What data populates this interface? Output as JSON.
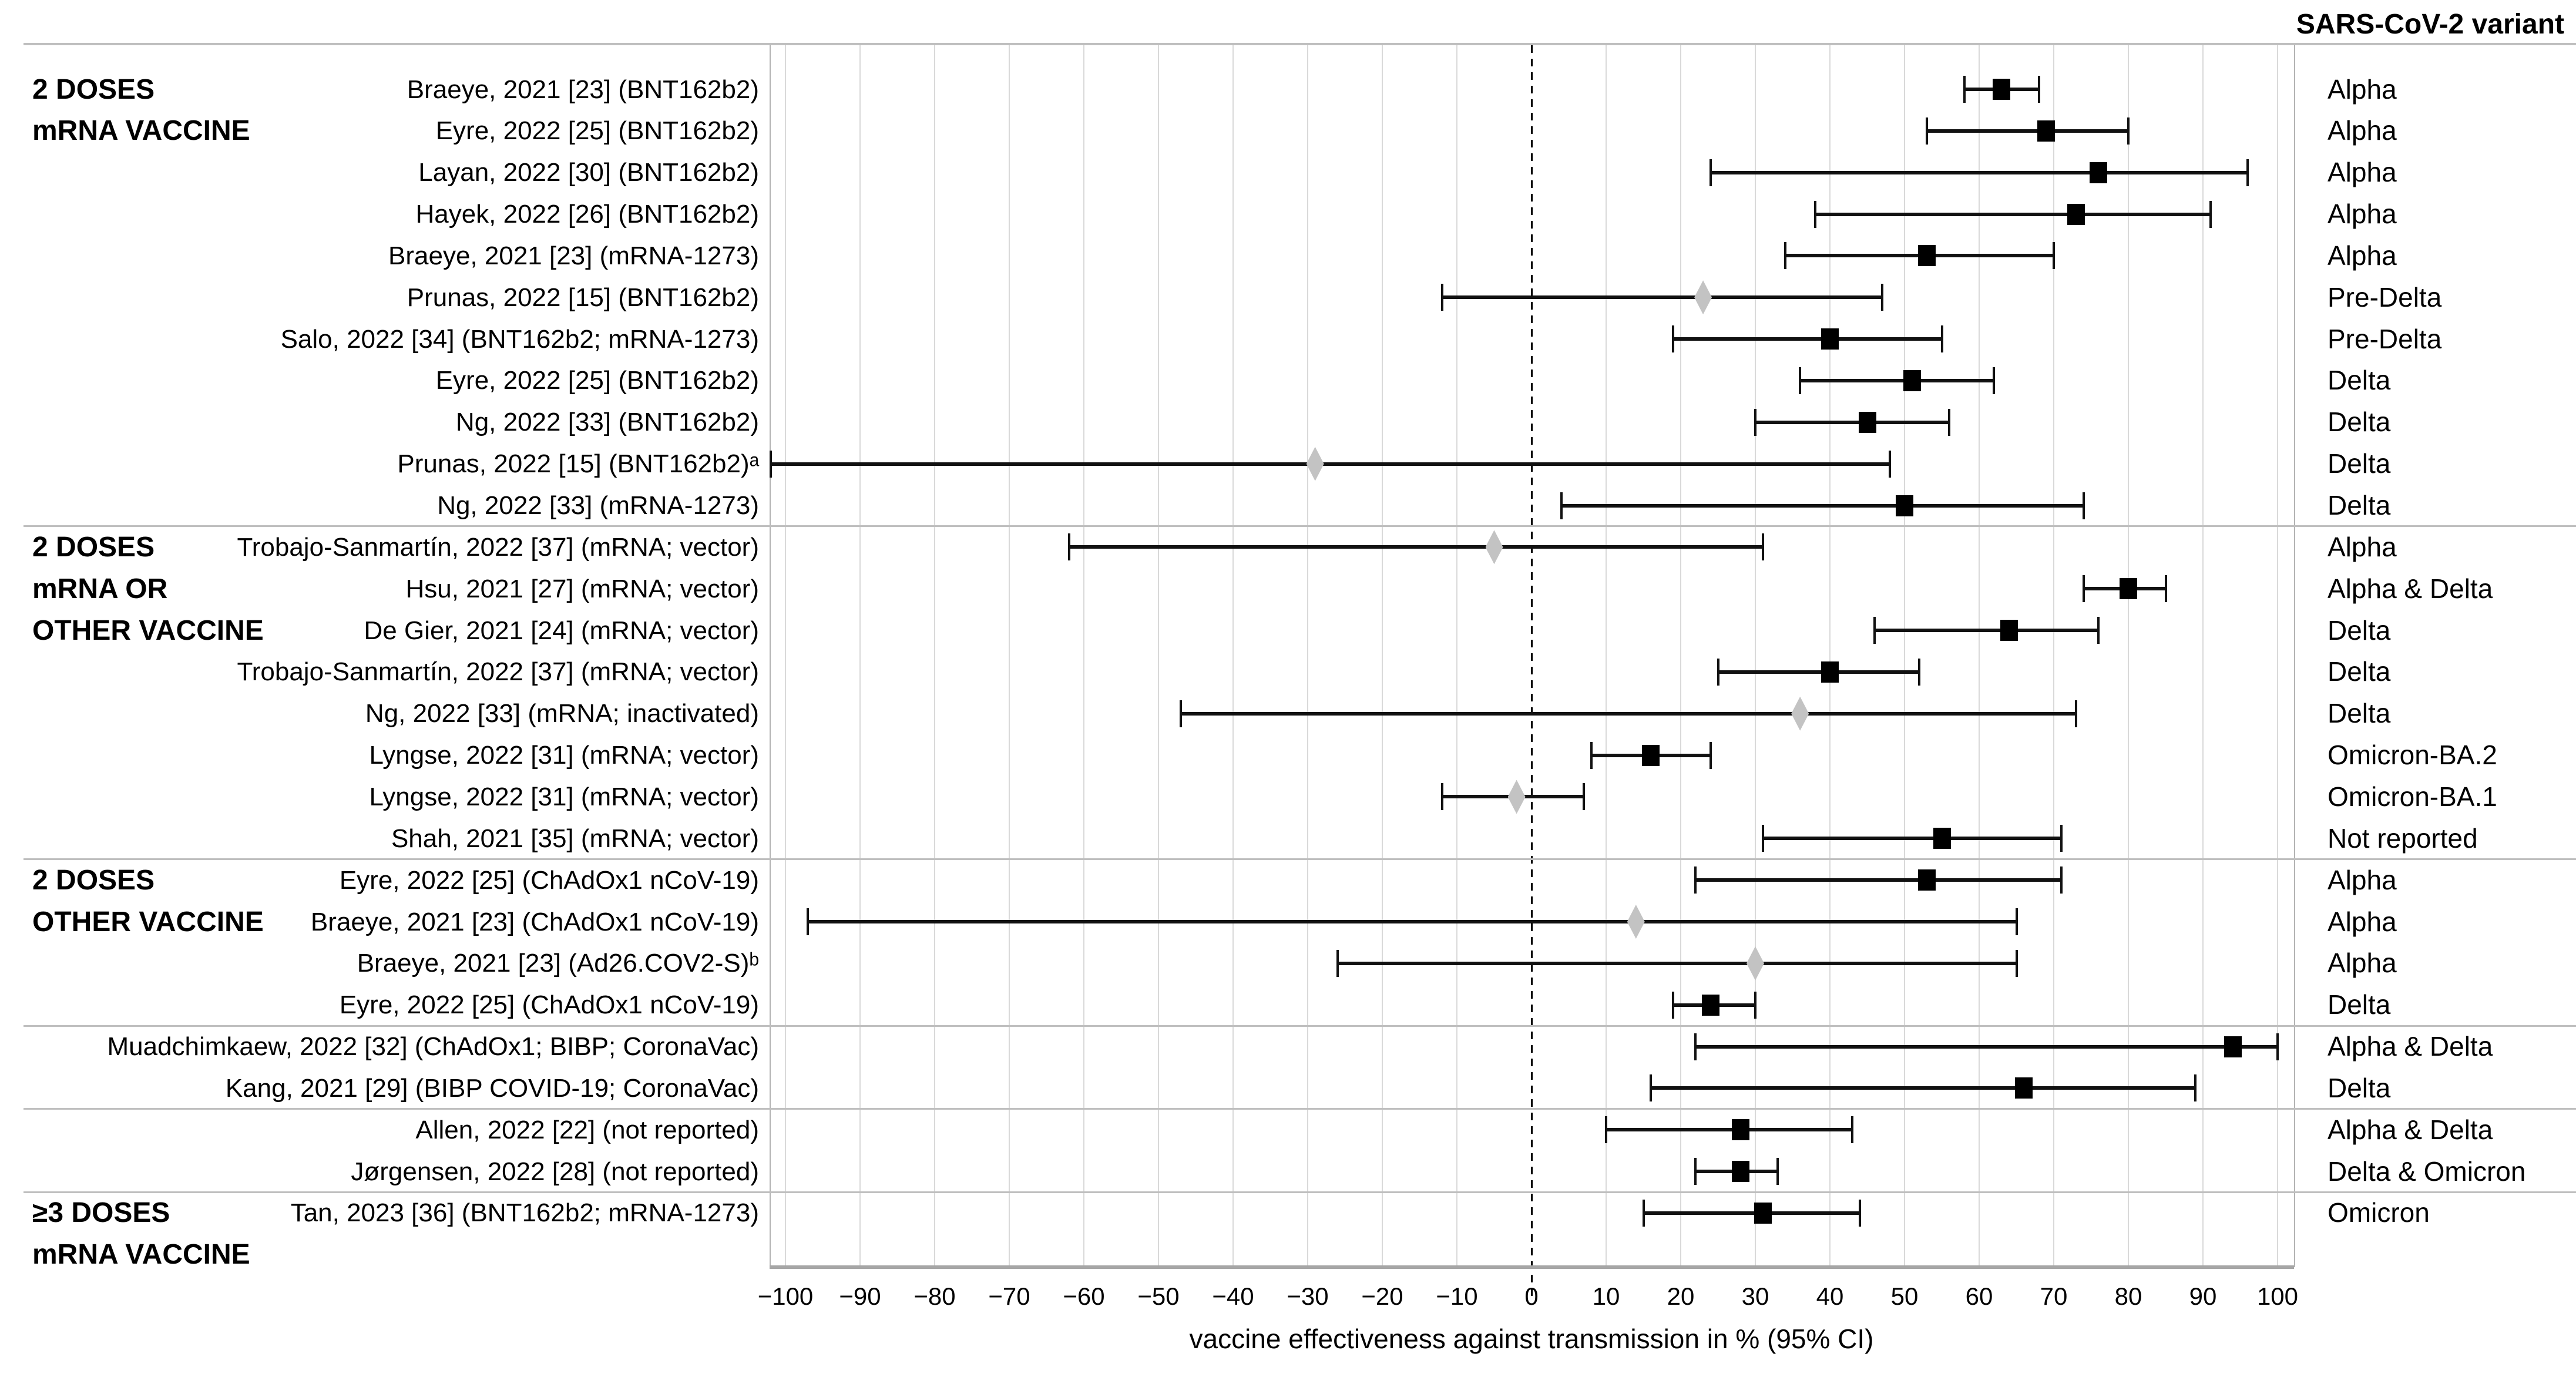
{
  "chart_data": {
    "type": "scatter",
    "subtype": "forest-plot",
    "title": "",
    "xlabel": "vaccine effectiveness against transmission in % (95% CI)",
    "right_column_header": "SARS-CoV-2 variant",
    "xlim": [
      -100,
      100
    ],
    "x_tick_step": 10,
    "x_tick_values": [
      -100,
      -90,
      -80,
      -70,
      -60,
      -50,
      -40,
      -30,
      -20,
      -10,
      0,
      10,
      20,
      30,
      40,
      50,
      60,
      70,
      80,
      90,
      100
    ],
    "x_tick_labels": [
      "−100",
      "−90",
      "−80",
      "−70",
      "−60",
      "−50",
      "−40",
      "−30",
      "−20",
      "−10",
      "0",
      "10",
      "20",
      "30",
      "40",
      "50",
      "60",
      "70",
      "80",
      "90",
      "100"
    ],
    "grid": true,
    "zero_reference_line": "dashed",
    "marker_colors": {
      "black-square": "#000000",
      "grey-diamond": "#c3c3c3"
    },
    "sections": [
      {
        "header": [
          "2 DOSES",
          "mRNA VACCINE"
        ],
        "start": 0,
        "end": 10
      },
      {
        "header": [
          "2 DOSES",
          "mRNA OR",
          "OTHER VACCINE"
        ],
        "start": 11,
        "end": 18
      },
      {
        "header": [
          "2 DOSES",
          "OTHER VACCINE"
        ],
        "start": 19,
        "end": 22
      },
      {
        "header": [],
        "start": 23,
        "end": 24
      },
      {
        "header": [],
        "start": 25,
        "end": 26
      },
      {
        "header": [
          "≥3 DOSES",
          "mRNA VACCINE"
        ],
        "start": 27,
        "end": 27
      }
    ],
    "rows": [
      {
        "label": "Braeye, 2021 [23] (BNT162b2)",
        "variant": "Alpha",
        "est": 63,
        "lo": 58,
        "hi": 68,
        "marker": "black-square"
      },
      {
        "label": "Eyre, 2022 [25] (BNT162b2)",
        "variant": "Alpha",
        "est": 69,
        "lo": 53,
        "hi": 80,
        "marker": "black-square"
      },
      {
        "label": "Layan, 2022 [30] (BNT162b2)",
        "variant": "Alpha",
        "est": 76,
        "lo": 24,
        "hi": 96,
        "marker": "black-square"
      },
      {
        "label": "Hayek, 2022 [26] (BNT162b2)",
        "variant": "Alpha",
        "est": 73,
        "lo": 38,
        "hi": 91,
        "marker": "black-square"
      },
      {
        "label": "Braeye, 2021 [23] (mRNA-1273)",
        "variant": "Alpha",
        "est": 53,
        "lo": 34,
        "hi": 70,
        "marker": "black-square"
      },
      {
        "label": "Prunas, 2022 [15] (BNT162b2)",
        "variant": "Pre-Delta",
        "est": 23,
        "lo": -12,
        "hi": 47,
        "marker": "grey-diamond"
      },
      {
        "label": "Salo, 2022 [34] (BNT162b2; mRNA-1273)",
        "variant": "Pre-Delta",
        "est": 40,
        "lo": 19,
        "hi": 55,
        "marker": "black-square"
      },
      {
        "label": "Eyre, 2022 [25] (BNT162b2)",
        "variant": "Delta",
        "est": 51,
        "lo": 36,
        "hi": 62,
        "marker": "black-square"
      },
      {
        "label": "Ng, 2022 [33] (BNT162b2)",
        "variant": "Delta",
        "est": 45,
        "lo": 30,
        "hi": 56,
        "marker": "black-square"
      },
      {
        "label": "Prunas, 2022 [15] (BNT162b2)ᵃ",
        "variant": "Delta",
        "est": -29,
        "lo": -102,
        "hi": 48,
        "marker": "grey-diamond"
      },
      {
        "label": "Ng, 2022 [33] (mRNA-1273)",
        "variant": "Delta",
        "est": 50,
        "lo": 4,
        "hi": 74,
        "marker": "black-square"
      },
      {
        "label": "Trobajo-Sanmartín, 2022 [37] (mRNA; vector)",
        "variant": "Alpha",
        "est": -5,
        "lo": -62,
        "hi": 31,
        "marker": "grey-diamond"
      },
      {
        "label": "Hsu, 2021 [27] (mRNA; vector)",
        "variant": "Alpha & Delta",
        "est": 80,
        "lo": 74,
        "hi": 85,
        "marker": "black-square"
      },
      {
        "label": "De Gier, 2021 [24] (mRNA; vector)",
        "variant": "Delta",
        "est": 64,
        "lo": 46,
        "hi": 76,
        "marker": "black-square"
      },
      {
        "label": "Trobajo-Sanmartín, 2022 [37] (mRNA; vector)",
        "variant": "Delta",
        "est": 40,
        "lo": 25,
        "hi": 52,
        "marker": "black-square"
      },
      {
        "label": "Ng, 2022 [33] (mRNA; inactivated)",
        "variant": "Delta",
        "est": 36,
        "lo": -47,
        "hi": 73,
        "marker": "grey-diamond"
      },
      {
        "label": "Lyngse, 2022 [31] (mRNA; vector)",
        "variant": "Omicron-BA.2",
        "est": 16,
        "lo": 8,
        "hi": 24,
        "marker": "black-square"
      },
      {
        "label": "Lyngse, 2022 [31] (mRNA; vector)",
        "variant": "Omicron-BA.1",
        "est": -2,
        "lo": -12,
        "hi": 7,
        "marker": "grey-diamond"
      },
      {
        "label": "Shah, 2021 [35] (mRNA; vector)",
        "variant": "Not reported",
        "est": 55,
        "lo": 31,
        "hi": 71,
        "marker": "black-square"
      },
      {
        "label": "Eyre, 2022 [25] (ChAdOx1 nCoV-19)",
        "variant": "Alpha",
        "est": 53,
        "lo": 22,
        "hi": 71,
        "marker": "black-square"
      },
      {
        "label": "Braeye, 2021 [23] (ChAdOx1 nCoV-19)",
        "variant": "Alpha",
        "est": 14,
        "lo": -97,
        "hi": 65,
        "marker": "grey-diamond"
      },
      {
        "label": "Braeye, 2021 [23] (Ad26.COV2-S)ᵇ",
        "variant": "Alpha",
        "est": 30,
        "lo": -26,
        "hi": 65,
        "marker": "grey-diamond"
      },
      {
        "label": "Eyre, 2022 [25] (ChAdOx1 nCoV-19)",
        "variant": "Delta",
        "est": 24,
        "lo": 19,
        "hi": 30,
        "marker": "black-square"
      },
      {
        "label": "Muadchimkaew, 2022 [32] (ChAdOx1; BIBP; CoronaVac)",
        "variant": "Alpha & Delta",
        "est": 94,
        "lo": 22,
        "hi": 100,
        "marker": "black-square"
      },
      {
        "label": "Kang, 2021 [29] (BIBP COVID-19; CoronaVac)",
        "variant": "Delta",
        "est": 66,
        "lo": 16,
        "hi": 89,
        "marker": "black-square"
      },
      {
        "label": "Allen, 2022 [22] (not reported)",
        "variant": "Alpha & Delta",
        "est": 28,
        "lo": 10,
        "hi": 43,
        "marker": "black-square"
      },
      {
        "label": "Jørgensen, 2022 [28] (not reported)",
        "variant": "Delta & Omicron",
        "est": 28,
        "lo": 22,
        "hi": 33,
        "marker": "black-square"
      },
      {
        "label": "Tan, 2023 [36] (BNT162b2; mRNA-1273)",
        "variant": "Omicron",
        "est": 31,
        "lo": 15,
        "hi": 44,
        "marker": "black-square"
      }
    ]
  }
}
